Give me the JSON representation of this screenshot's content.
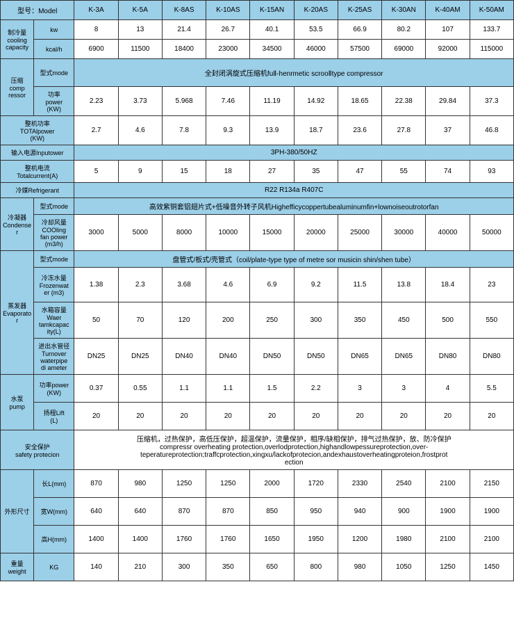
{
  "models": [
    "K-3A",
    "K-5A",
    "K-8AS",
    "K-10AS",
    "K-15AN",
    "K-20AS",
    "K-25AS",
    "K-30AN",
    "K-40AM",
    "K-50AM"
  ],
  "r1": {
    "lbl": "型号：Model"
  },
  "cooling": {
    "lbl": "制冷量\ncooling\ncapacity",
    "kw": {
      "lbl": "kw",
      "v": [
        "8",
        "13",
        "21.4",
        "26.7",
        "40.1",
        "53.5",
        "66.9",
        "80.2",
        "107",
        "133.7"
      ]
    },
    "kcal": {
      "lbl": "kcal/h",
      "v": [
        "6900",
        "11500",
        "18400",
        "23000",
        "34500",
        "46000",
        "57500",
        "69000",
        "92000",
        "115000"
      ]
    }
  },
  "comp": {
    "lbl": "压缩\ncomp\nressor",
    "mode": {
      "lbl": "型式mode",
      "txt": "全封闭涡旋式压缩机fuⅡ-henrmetic scrooⅡtype compressor"
    },
    "pwr": {
      "lbl": "功率\npower\n(KW)",
      "v": [
        "2.23",
        "3.73",
        "5.968",
        "7.46",
        "11.19",
        "14.92",
        "18.65",
        "22.38",
        "29.84",
        "37.3"
      ]
    }
  },
  "totalpwr": {
    "lbl": "整机功率\nTOTAlpower\n(KW)",
    "v": [
      "2.7",
      "4.6",
      "7.8",
      "9.3",
      "13.9",
      "18.7",
      "23.6",
      "27.8",
      "37",
      "46.8"
    ]
  },
  "input": {
    "lbl": "输入电源Inputower",
    "txt": "3PH-380/50HZ"
  },
  "totalcur": {
    "lbl": "整机电流\nTotalcurrent(A)",
    "v": [
      "5",
      "9",
      "15",
      "18",
      "27",
      "35",
      "47",
      "55",
      "74",
      "93"
    ]
  },
  "refrig": {
    "lbl": "冷媒Refrigerant",
    "txt": "R22 R134a R407C"
  },
  "cond": {
    "lbl": "冷凝器\nCondense\nr",
    "mode": {
      "lbl": "型式mode",
      "txt": "高效紫铜套铝翅片式+低噪音外转子风机Highefficycoppertubealuminumfin+lownoiseoutrotorfan"
    },
    "fan": {
      "lbl": "冷却风量\nCOOling\nfan power\n(m3/h)",
      "v": [
        "3000",
        "5000",
        "8000",
        "10000",
        "15000",
        "20000",
        "25000",
        "30000",
        "40000",
        "50000"
      ]
    }
  },
  "evap": {
    "lbl": "蒸发器\nEvaporato\nr",
    "mode": {
      "lbl": "型式mode",
      "txt": "盘管式/板式/壳管式（coil/plate-type type of metre sor musicin shin/shen tube）"
    },
    "frozen": {
      "lbl": "冷冻水量\nFrozenwat\ner (m3)",
      "v": [
        "1.38",
        "2.3",
        "3.68",
        "4.6",
        "6.9",
        "9.2",
        "11.5",
        "13.8",
        "18.4",
        "23"
      ]
    },
    "tank": {
      "lbl": "水箱容量\nWaer\ntamkcapac\nity(L)",
      "v": [
        "50",
        "70",
        "120",
        "200",
        "250",
        "300",
        "350",
        "450",
        "500",
        "550"
      ]
    },
    "pipe": {
      "lbl": "进出水管径\nTurnover\nwaterpipe\ndi ameter",
      "v": [
        "DN25",
        "DN25",
        "DN40",
        "DN40",
        "DN50",
        "DN50",
        "DN65",
        "DN65",
        "DN80",
        "DN80"
      ]
    }
  },
  "pump": {
    "lbl": "水泵\npump",
    "pwr": {
      "lbl": "功率power\n(KW)",
      "v": [
        "0.37",
        "0.55",
        "1.1",
        "1.1",
        "1.5",
        "2.2",
        "3",
        "3",
        "4",
        "5.5"
      ]
    },
    "lift": {
      "lbl": "扬程Lift\n(L)",
      "v": [
        "20",
        "20",
        "20",
        "20",
        "20",
        "20",
        "20",
        "20",
        "20",
        "20"
      ]
    }
  },
  "safety": {
    "lbl": "安全保护\nsafety protecion",
    "txt": "压缩机，过热保护，高低压保护，超温保护，流量保护，相序/缺相保护，排气过热保护，放、防冷保护\ncompressr overheating protection,overlodprotection,highandlowpessureprotection,over-\nteperatureprotection;traffcprotection,xingxu/lackofprotecion,andexhaustoverheatingproteion,frostprot\nection"
  },
  "dims": {
    "lbl": "外形尺寸",
    "L": {
      "lbl": "长L(mm)",
      "v": [
        "870",
        "980",
        "1250",
        "1250",
        "2000",
        "1720",
        "2330",
        "2540",
        "2100",
        "2150"
      ]
    },
    "W": {
      "lbl": "宽W(mm)",
      "v": [
        "640",
        "640",
        "870",
        "870",
        "850",
        "950",
        "940",
        "900",
        "1900",
        "1900"
      ]
    },
    "H": {
      "lbl": "高H(mm)",
      "v": [
        "1400",
        "1400",
        "1760",
        "1760",
        "1650",
        "1950",
        "1200",
        "1980",
        "2100",
        "2100"
      ]
    }
  },
  "weight": {
    "lbl": "重量\nweight",
    "sub": "KG",
    "v": [
      "140",
      "210",
      "300",
      "350",
      "650",
      "800",
      "980",
      "1050",
      "1250",
      "1450"
    ]
  }
}
